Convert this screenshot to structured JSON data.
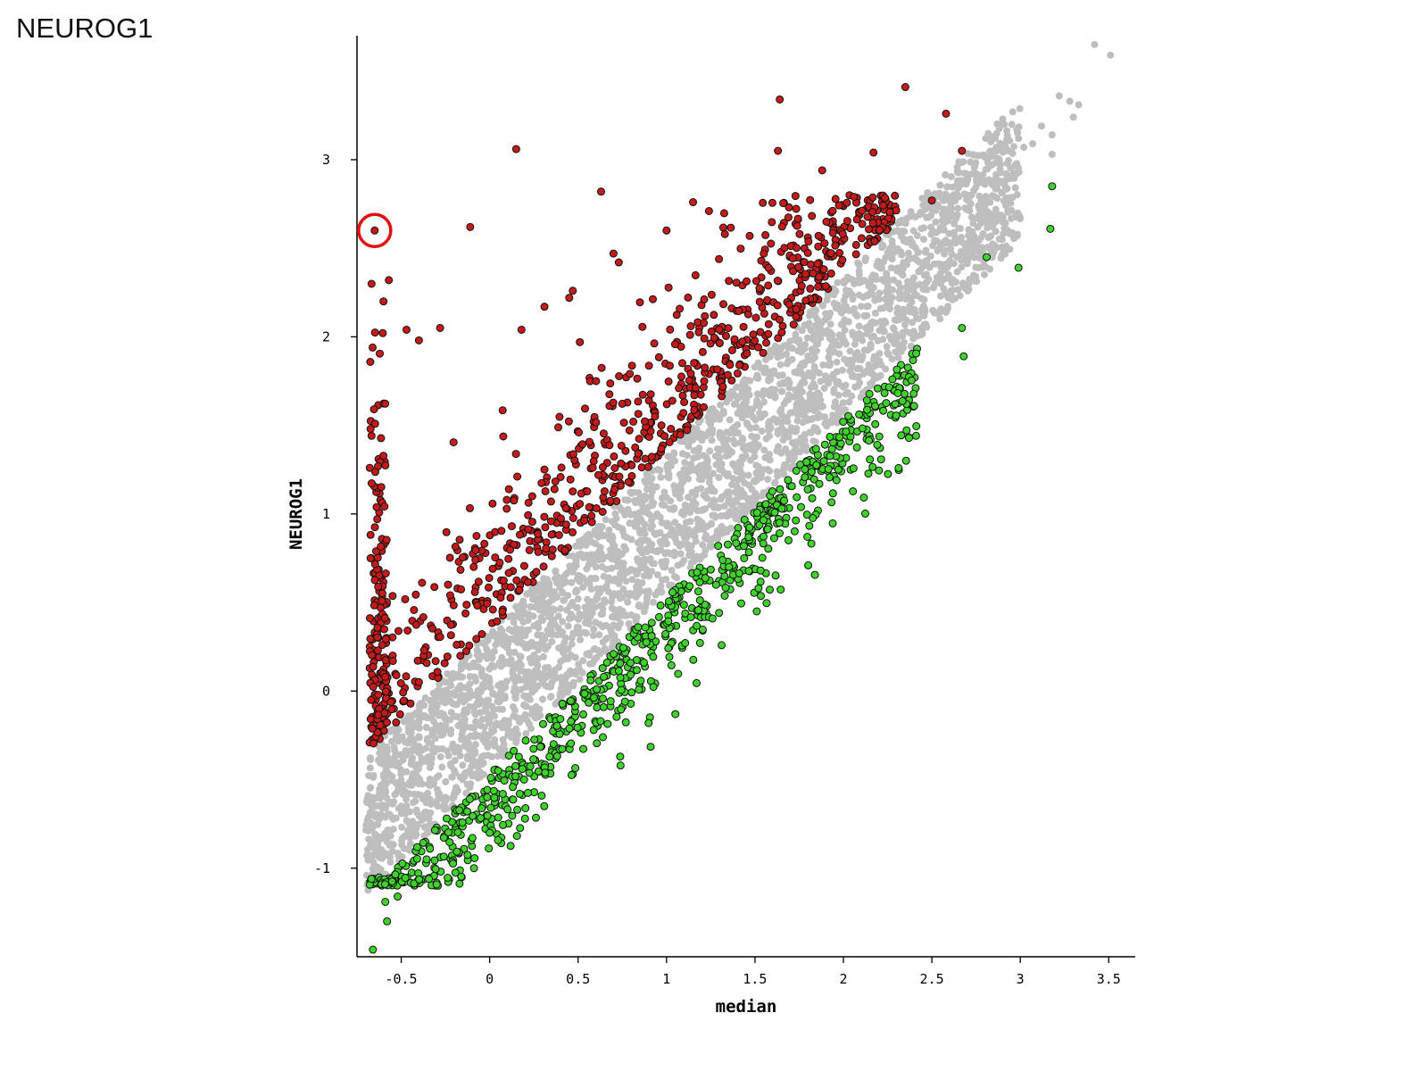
{
  "page_title": "NEUROG1",
  "chart_data": {
    "type": "scatter",
    "title": "",
    "xlabel": "median",
    "ylabel": "NEUROG1",
    "xlim": [
      -0.75,
      3.65
    ],
    "ylim": [
      -1.5,
      3.7
    ],
    "xticks": [
      {
        "value": -0.5,
        "label": "-0.5"
      },
      {
        "value": 0,
        "label": "0"
      },
      {
        "value": 0.5,
        "label": "0.5"
      },
      {
        "value": 1,
        "label": "1"
      },
      {
        "value": 1.5,
        "label": "1.5"
      },
      {
        "value": 2,
        "label": "2"
      },
      {
        "value": 2.5,
        "label": "2.5"
      },
      {
        "value": 3,
        "label": "3"
      },
      {
        "value": 3.5,
        "label": "3.5"
      }
    ],
    "yticks": [
      {
        "value": -1,
        "label": "-1"
      },
      {
        "value": 0,
        "label": "0"
      },
      {
        "value": 1,
        "label": "1"
      },
      {
        "value": 2,
        "label": "2"
      },
      {
        "value": 3,
        "label": "3"
      }
    ],
    "grid": false,
    "colors": {
      "not_significant": "#bebebe",
      "higher": "#c41a1a",
      "lower": "#3ed22a",
      "marker_edge": "#111111",
      "highlight_circle": "#e01010"
    },
    "highlighted_point": {
      "x": -0.65,
      "y": 2.6
    },
    "series": [
      {
        "group": "not_significant",
        "band": {
          "x_range": [
            -0.7,
            3.0
          ],
          "offset_range": [
            -0.45,
            0.34
          ]
        },
        "points": [
          [
            3.42,
            3.65
          ],
          [
            3.51,
            3.59
          ],
          [
            3.33,
            3.31
          ],
          [
            3.28,
            3.33
          ],
          [
            3.22,
            3.36
          ],
          [
            3.3,
            3.24
          ],
          [
            3.12,
            3.19
          ],
          [
            3.07,
            3.09
          ],
          [
            3.18,
            3.14
          ],
          [
            3.02,
            3.07
          ],
          [
            2.95,
            2.9
          ],
          [
            2.85,
            2.88
          ],
          [
            2.7,
            2.8
          ],
          [
            3.18,
            3.03
          ],
          [
            2.99,
            3.12
          ]
        ]
      },
      {
        "group": "higher",
        "points": [
          [
            -0.65,
            2.6
          ],
          [
            0.15,
            3.06
          ],
          [
            0.63,
            2.82
          ],
          [
            -0.11,
            2.62
          ],
          [
            1.64,
            3.34
          ],
          [
            2.35,
            3.41
          ],
          [
            2.58,
            3.26
          ],
          [
            1.63,
            3.05
          ],
          [
            2.17,
            3.04
          ],
          [
            2.67,
            3.05
          ],
          [
            1.88,
            2.94
          ],
          [
            2.5,
            2.77
          ],
          [
            1.15,
            2.76
          ],
          [
            1.24,
            2.71
          ],
          [
            0.73,
            2.42
          ],
          [
            0.7,
            2.47
          ],
          [
            -0.57,
            2.32
          ],
          [
            -0.47,
            2.04
          ],
          [
            -0.28,
            2.05
          ],
          [
            0.18,
            2.04
          ],
          [
            -0.6,
            2.2
          ],
          [
            -0.4,
            1.98
          ],
          [
            0.47,
            2.26
          ],
          [
            1.0,
            2.6
          ],
          [
            1.33,
            2.58
          ],
          [
            1.47,
            2.57
          ],
          [
            1.55,
            2.47
          ],
          [
            0.45,
            2.22
          ],
          [
            0.31,
            2.17
          ],
          [
            0.51,
            1.97
          ]
        ]
      },
      {
        "group": "lower",
        "points": [
          [
            -0.66,
            -1.46
          ],
          [
            -0.58,
            -1.3
          ],
          [
            -0.59,
            -1.19
          ],
          [
            -0.52,
            -1.16
          ],
          [
            3.18,
            2.85
          ],
          [
            3.17,
            2.61
          ],
          [
            2.81,
            2.45
          ],
          [
            2.99,
            2.39
          ],
          [
            2.68,
            1.89
          ],
          [
            2.67,
            2.05
          ],
          [
            1.51,
            0.45
          ],
          [
            1.26,
            0.41
          ],
          [
            1.05,
            -0.13
          ],
          [
            0.74,
            -0.42
          ],
          [
            0.2,
            -0.72
          ],
          [
            0.0,
            -0.8
          ],
          [
            1.52,
            0.58
          ],
          [
            1.28,
            0.6
          ]
        ]
      }
    ]
  }
}
